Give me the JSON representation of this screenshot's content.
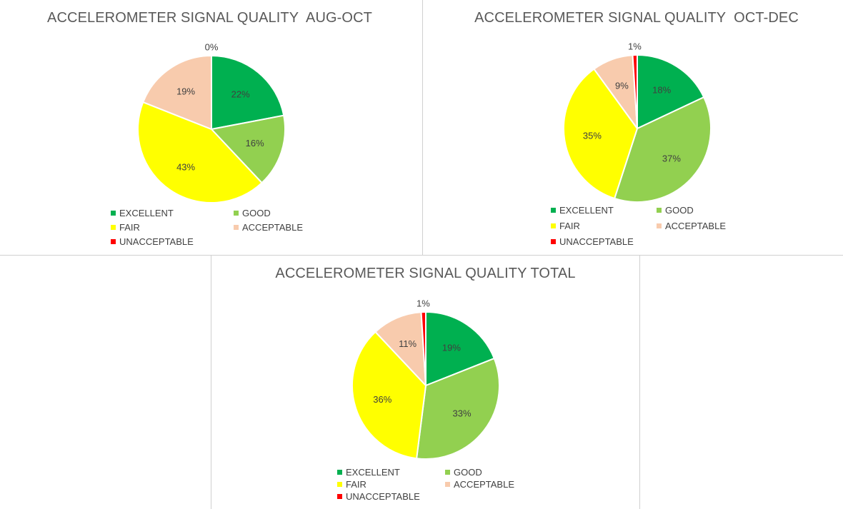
{
  "colors": {
    "excellent": "#00b050",
    "good": "#92d050",
    "fair": "#ffff00",
    "acceptable": "#f8cbad",
    "unacceptable": "#ff0000"
  },
  "chart_data": [
    {
      "type": "pie",
      "title": "ACCELEROMETER SIGNAL QUALITY  AUG-OCT",
      "categories": [
        "EXCELLENT",
        "GOOD",
        "FAIR",
        "ACCEPTABLE",
        "UNACCEPTABLE"
      ],
      "values": [
        22,
        16,
        43,
        19,
        0
      ],
      "labels": [
        "22%",
        "16%",
        "43%",
        "19%",
        "0%"
      ],
      "legend": "bottom"
    },
    {
      "type": "pie",
      "title": "ACCELEROMETER SIGNAL QUALITY  OCT-DEC",
      "categories": [
        "EXCELLENT",
        "GOOD",
        "FAIR",
        "ACCEPTABLE",
        "UNACCEPTABLE"
      ],
      "values": [
        18,
        37,
        35,
        9,
        1
      ],
      "labels": [
        "18%",
        "37%",
        "35%",
        "9%",
        "1%"
      ],
      "legend": "bottom"
    },
    {
      "type": "pie",
      "title": "ACCELEROMETER SIGNAL QUALITY TOTAL",
      "categories": [
        "EXCELLENT",
        "GOOD",
        "FAIR",
        "ACCEPTABLE",
        "UNACCEPTABLE"
      ],
      "values": [
        19,
        33,
        36,
        11,
        1
      ],
      "labels": [
        "19%",
        "33%",
        "36%",
        "11%",
        "1%"
      ],
      "legend": "bottom"
    }
  ]
}
